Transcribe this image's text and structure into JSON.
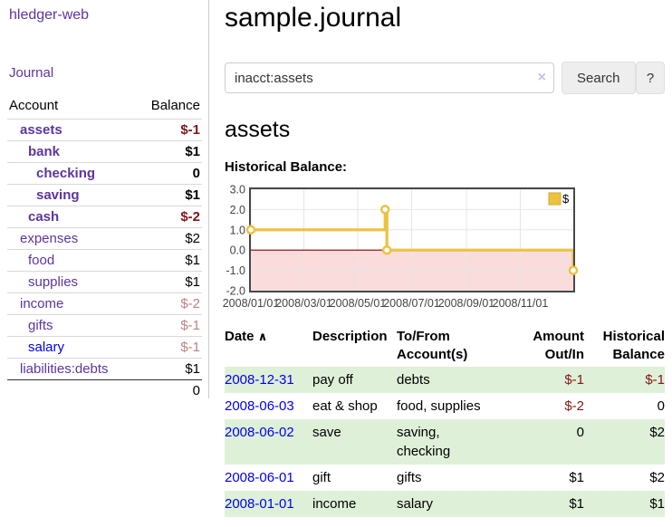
{
  "sidebar": {
    "brand": "hledger-web",
    "journal_link": "Journal",
    "accounts": {
      "header_account": "Account",
      "header_balance": "Balance",
      "rows": [
        {
          "name": "assets",
          "depth": 1,
          "bold": true,
          "balance": "$-1",
          "balance_tone": "neg-strong"
        },
        {
          "name": "bank",
          "depth": 2,
          "bold": true,
          "balance": "$1",
          "balance_tone": "pos"
        },
        {
          "name": "checking",
          "depth": 3,
          "bold": true,
          "balance": "0",
          "balance_tone": "pos"
        },
        {
          "name": "saving",
          "depth": 3,
          "bold": true,
          "balance": "$1",
          "balance_tone": "pos"
        },
        {
          "name": "cash",
          "depth": 2,
          "bold": true,
          "balance": "$-2",
          "balance_tone": "neg-strong"
        },
        {
          "name": "expenses",
          "depth": 1,
          "bold": false,
          "balance": "$2",
          "balance_tone": "pos"
        },
        {
          "name": "food",
          "depth": 2,
          "bold": false,
          "balance": "$1",
          "balance_tone": "pos"
        },
        {
          "name": "supplies",
          "depth": 2,
          "bold": false,
          "balance": "$1",
          "balance_tone": "pos"
        },
        {
          "name": "income",
          "depth": 1,
          "bold": false,
          "balance": "$-2",
          "balance_tone": "neg-soft"
        },
        {
          "name": "gifts",
          "depth": 2,
          "bold": false,
          "balance": "$-1",
          "balance_tone": "neg-soft"
        },
        {
          "name": "salary",
          "depth": 2,
          "bold": false,
          "balance": "$-1",
          "balance_tone": "neg-soft",
          "link_tone": "blue"
        },
        {
          "name": "liabilities:debts",
          "depth": 1,
          "bold": false,
          "balance": "$1",
          "balance_tone": "pos"
        }
      ],
      "total": "0"
    }
  },
  "header": {
    "title": "sample.journal"
  },
  "search": {
    "value": "inacct:assets",
    "clear_icon": "×",
    "submit_label": "Search",
    "help_label": "?"
  },
  "register": {
    "account_heading": "assets",
    "chart_title": "Historical Balance:",
    "table": {
      "headers": {
        "date": "Date",
        "sort_icon": "∧",
        "description": "Description",
        "to_from": "To/From\nAccount(s)",
        "amount": "Amount\nOut/In",
        "balance": "Historical\nBalance"
      },
      "rows": [
        {
          "date": "2008-12-31",
          "description": "pay off",
          "to_from": "debts",
          "amount": "$-1",
          "amount_tone": "neg",
          "balance": "$-1",
          "balance_tone": "neg"
        },
        {
          "date": "2008-06-03",
          "description": "eat & shop",
          "to_from": "food, supplies",
          "amount": "$-2",
          "amount_tone": "neg",
          "balance": "0",
          "balance_tone": "pos"
        },
        {
          "date": "2008-06-02",
          "description": "save",
          "to_from": "saving,\nchecking",
          "amount": "0",
          "amount_tone": "pos",
          "balance": "$2",
          "balance_tone": "pos"
        },
        {
          "date": "2008-06-01",
          "description": "gift",
          "to_from": "gifts",
          "amount": "$1",
          "amount_tone": "pos",
          "balance": "$2",
          "balance_tone": "pos"
        },
        {
          "date": "2008-01-01",
          "description": "income",
          "to_from": "salary",
          "amount": "$1",
          "amount_tone": "pos",
          "balance": "$1",
          "balance_tone": "pos"
        }
      ]
    }
  },
  "chart_data": {
    "type": "line",
    "line_style": "steps",
    "title": "Historical Balance:",
    "series": [
      {
        "name": "$",
        "color": "#edc240",
        "points": [
          [
            "2008-01-01",
            1
          ],
          [
            "2008-06-01",
            2
          ],
          [
            "2008-06-03",
            0
          ],
          [
            "2008-12-31",
            -1
          ]
        ]
      }
    ],
    "xlim": [
      "2008-01-01",
      "2008-12-31"
    ],
    "ylim": [
      -2,
      3
    ],
    "yticks": [
      3,
      2,
      1,
      0,
      -1,
      -2
    ],
    "xticks": [
      "2008/01/01",
      "2008/03/01",
      "2008/05/01",
      "2008/07/01",
      "2008/09/01",
      "2008/11/01"
    ],
    "legend": {
      "label": "$",
      "position": "top-right"
    },
    "grid": true,
    "grid_color": "#e6e6e6",
    "border_color": "#474747",
    "negative_region_color": "#fbdcdc",
    "zero_line_color": "#8b0000"
  },
  "colors": {
    "accent_purple": "#5c35a0",
    "link_blue": "#0000ee",
    "negative_strong": "#801717",
    "negative_soft": "#bd8282",
    "table_negative": "#861616",
    "row_green": "#dff0d8",
    "series_yellow": "#edc240"
  }
}
